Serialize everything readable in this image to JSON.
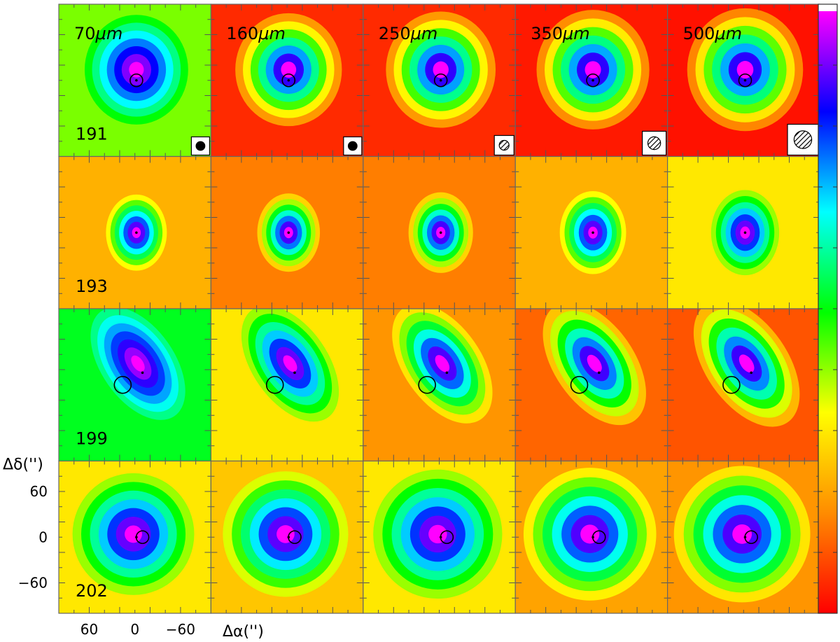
{
  "figure": {
    "wavelengths": [
      "70",
      "160",
      "250",
      "350",
      "500"
    ],
    "wavelength_unit": "μm",
    "sources": [
      "191",
      "193",
      "199",
      "202"
    ],
    "x_axis_label": "Δα('')",
    "y_axis_label": "Δδ('')",
    "x_ticks": [
      "60",
      "0",
      "−60"
    ],
    "y_ticks": [
      "60",
      "0",
      "−60"
    ],
    "colormap": [
      "#ff0000",
      "#ff8c00",
      "#ffff00",
      "#00ff00",
      "#00ffff",
      "#0000ff",
      "#ff00ff",
      "#ffffff"
    ]
  }
}
